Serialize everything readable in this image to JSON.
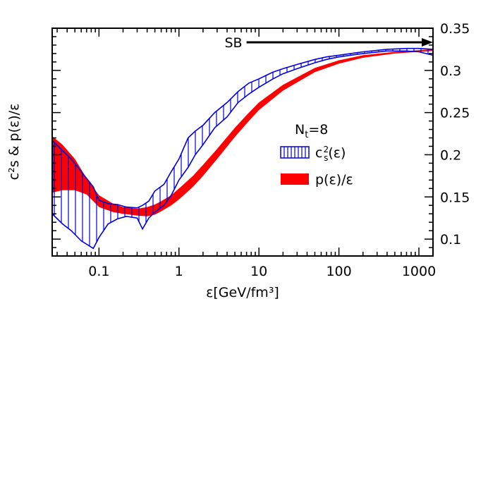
{
  "chart_data": {
    "type": "area",
    "title": "",
    "xlabel": "ε[GeV/fm³]",
    "ylabel": "c²s & p(ε)/ε",
    "x_scale": "log",
    "xlim": [
      0.026,
      1500
    ],
    "ylim": [
      0.08,
      0.35
    ],
    "x_ticks": [
      0.1,
      1,
      10,
      100,
      1000
    ],
    "x_tick_labels": [
      "0.1",
      "1",
      "10",
      "100",
      "1000"
    ],
    "y_ticks": [
      0.1,
      0.15,
      0.2,
      0.25,
      0.3,
      0.35
    ],
    "y_tick_labels": [
      "0.1",
      "0.15",
      "0.2",
      "0.25",
      "0.3",
      "0.35"
    ],
    "y_axis_side": "right",
    "grid": false,
    "legend": {
      "position": "right",
      "header": {
        "main": "N",
        "sub": "t",
        "rest": "=8"
      },
      "entries": [
        {
          "series": "cs2",
          "base": "c",
          "sup": "2",
          "sub": "s",
          "rest": "(ε)"
        },
        {
          "series": "p_over_e",
          "base": "p(ε)/ε"
        }
      ]
    },
    "annotation": {
      "label": "SB",
      "x_start": 7.0,
      "x_end": 1500,
      "y": 0.3333
    },
    "colors": {
      "cs2": "#0000dd",
      "p_over_e": "#ff0000",
      "axis": "#000000"
    },
    "series": [
      {
        "id": "cs2",
        "style": "hatched-band",
        "x": [
          0.026,
          0.035,
          0.045,
          0.06,
          0.085,
          0.1,
          0.13,
          0.17,
          0.22,
          0.3,
          0.35,
          0.42,
          0.5,
          0.65,
          0.8,
          1.0,
          1.3,
          1.6,
          2.0,
          2.8,
          4.0,
          5.5,
          7.5,
          10,
          15,
          20,
          30,
          50,
          70,
          100,
          200,
          400,
          700,
          1000,
          1500
        ],
        "upper": [
          0.217,
          0.205,
          0.195,
          0.18,
          0.162,
          0.146,
          0.142,
          0.141,
          0.138,
          0.137,
          0.14,
          0.145,
          0.157,
          0.165,
          0.18,
          0.195,
          0.22,
          0.228,
          0.235,
          0.25,
          0.262,
          0.275,
          0.285,
          0.29,
          0.298,
          0.302,
          0.307,
          0.313,
          0.316,
          0.318,
          0.322,
          0.325,
          0.326,
          0.326,
          0.325
        ],
        "lower": [
          0.13,
          0.118,
          0.11,
          0.098,
          0.089,
          0.102,
          0.118,
          0.124,
          0.127,
          0.125,
          0.112,
          0.125,
          0.132,
          0.14,
          0.152,
          0.17,
          0.185,
          0.2,
          0.212,
          0.232,
          0.245,
          0.262,
          0.272,
          0.28,
          0.29,
          0.296,
          0.302,
          0.309,
          0.313,
          0.316,
          0.32,
          0.323,
          0.323,
          0.322,
          0.318
        ]
      },
      {
        "id": "p_over_e",
        "style": "filled-band",
        "x": [
          0.026,
          0.035,
          0.05,
          0.07,
          0.1,
          0.15,
          0.2,
          0.3,
          0.4,
          0.5,
          0.6,
          0.8,
          1.0,
          1.5,
          2.0,
          3.0,
          5.0,
          7.0,
          10,
          20,
          50,
          100,
          200,
          500,
          1000,
          1500
        ],
        "upper": [
          0.222,
          0.212,
          0.195,
          0.172,
          0.152,
          0.142,
          0.138,
          0.136,
          0.138,
          0.141,
          0.145,
          0.152,
          0.16,
          0.175,
          0.188,
          0.207,
          0.232,
          0.247,
          0.262,
          0.283,
          0.303,
          0.312,
          0.318,
          0.322,
          0.324,
          0.325
        ],
        "lower": [
          0.155,
          0.158,
          0.158,
          0.153,
          0.138,
          0.132,
          0.13,
          0.128,
          0.127,
          0.129,
          0.133,
          0.14,
          0.147,
          0.162,
          0.175,
          0.195,
          0.221,
          0.237,
          0.253,
          0.276,
          0.298,
          0.308,
          0.315,
          0.32,
          0.322,
          0.323
        ]
      }
    ]
  }
}
